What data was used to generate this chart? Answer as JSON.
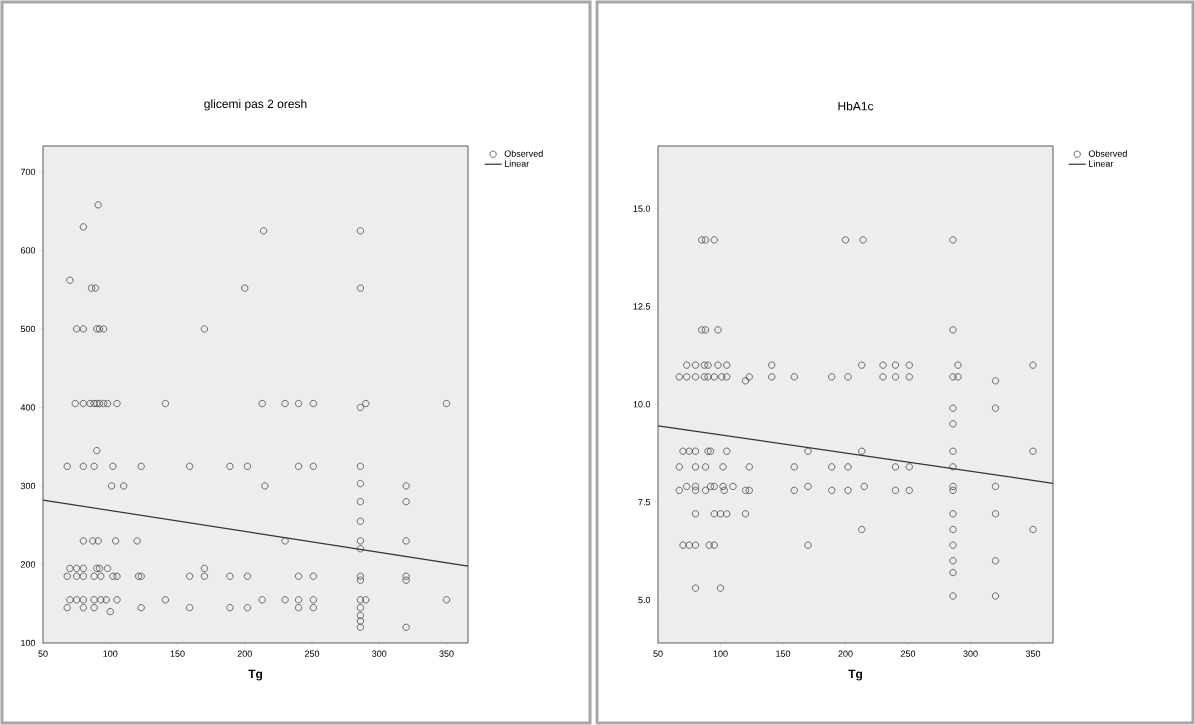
{
  "chart_data": [
    {
      "type": "scatter",
      "title": "glicemi pas 2 oresh",
      "xlabel": "Tg",
      "xlim": [
        50,
        366
      ],
      "ylim": [
        100,
        733
      ],
      "xticks": [
        50,
        100,
        150,
        200,
        250,
        300,
        350
      ],
      "yticks": [
        100,
        200,
        300,
        400,
        500,
        600,
        700
      ],
      "legend": "top right",
      "series": [
        {
          "name": "Observed",
          "marker": "circle",
          "color": "#333333",
          "x": [
            70,
            80,
            91,
            214,
            286,
            286,
            200,
            86,
            89,
            75,
            80,
            90,
            92,
            95,
            170,
            74,
            80,
            85,
            88,
            90,
            92,
            95,
            98,
            105,
            141,
            213,
            230,
            240,
            251,
            286,
            290,
            350,
            90,
            68,
            80,
            88,
            102,
            123,
            159,
            189,
            202,
            240,
            251,
            286,
            101,
            110,
            215,
            286,
            320,
            286,
            320,
            286,
            80,
            87,
            91,
            104,
            120,
            230,
            286,
            320,
            286,
            70,
            75,
            80,
            90,
            92,
            98,
            170,
            68,
            75,
            80,
            88,
            93,
            102,
            105,
            121,
            123,
            159,
            170,
            189,
            202,
            240,
            251,
            286,
            320,
            286,
            320,
            70,
            75,
            80,
            88,
            93,
            97,
            105,
            141,
            213,
            230,
            240,
            251,
            286,
            290,
            350,
            68,
            80,
            88,
            123,
            159,
            189,
            202,
            240,
            251,
            286,
            100,
            286,
            286,
            286,
            320
          ],
          "values": [
            562,
            630,
            658,
            625,
            625,
            552,
            552,
            552,
            552,
            500,
            500,
            500,
            500,
            500,
            500,
            405,
            405,
            405,
            405,
            405,
            405,
            405,
            405,
            405,
            405,
            405,
            405,
            405,
            405,
            400,
            405,
            405,
            345,
            325,
            325,
            325,
            325,
            325,
            325,
            325,
            325,
            325,
            325,
            325,
            300,
            300,
            300,
            303,
            300,
            280,
            280,
            255,
            230,
            230,
            230,
            230,
            230,
            230,
            230,
            230,
            220,
            195,
            195,
            195,
            195,
            195,
            195,
            195,
            185,
            185,
            185,
            185,
            185,
            185,
            185,
            185,
            185,
            185,
            185,
            185,
            185,
            185,
            185,
            185,
            185,
            180,
            180,
            155,
            155,
            155,
            155,
            155,
            155,
            155,
            155,
            155,
            155,
            155,
            155,
            155,
            155,
            155,
            145,
            145,
            145,
            145,
            145,
            145,
            145,
            145,
            145,
            145,
            140,
            135,
            128,
            120,
            120
          ]
        },
        {
          "name": "Linear",
          "type": "line",
          "marker": "none",
          "line_style": "solid",
          "color": "#333333",
          "x": [
            50,
            366
          ],
          "values": [
            282,
            198
          ]
        }
      ]
    },
    {
      "type": "scatter",
      "title": "HbA1c",
      "xlabel": "Tg",
      "xlim": [
        50,
        366
      ],
      "ylim": [
        3.9,
        16.6
      ],
      "xticks": [
        50,
        100,
        150,
        200,
        250,
        300,
        350
      ],
      "yticks": [
        {
          "value": 5,
          "label": "5.0"
        },
        {
          "value": 7.5,
          "label": "7.5"
        },
        {
          "value": 10,
          "label": "10.0"
        },
        {
          "value": 12.5,
          "label": "12.5"
        },
        {
          "value": 15,
          "label": "15.0"
        }
      ],
      "legend": "top right",
      "series": [
        {
          "name": "Observed",
          "marker": "circle",
          "color": "#333333",
          "x": [
            85,
            88,
            95,
            200,
            214,
            286,
            85,
            88,
            98,
            286,
            73,
            80,
            87,
            90,
            98,
            105,
            141,
            213,
            230,
            240,
            251,
            290,
            350,
            67,
            73,
            80,
            87,
            90,
            95,
            101,
            105,
            120,
            123,
            141,
            159,
            189,
            202,
            230,
            240,
            251,
            286,
            290,
            320,
            286,
            320,
            286,
            70,
            75,
            80,
            90,
            92,
            105,
            170,
            213,
            286,
            350,
            67,
            80,
            88,
            102,
            123,
            159,
            189,
            202,
            240,
            251,
            286,
            73,
            80,
            92,
            95,
            102,
            110,
            170,
            215,
            286,
            320,
            67,
            80,
            88,
            103,
            120,
            123,
            159,
            189,
            202,
            240,
            251,
            286,
            80,
            95,
            100,
            105,
            120,
            286,
            320,
            213,
            286,
            350,
            70,
            75,
            80,
            91,
            95,
            170,
            286,
            286,
            320,
            286,
            80,
            100,
            286,
            320
          ],
          "values": [
            14.2,
            14.2,
            14.2,
            14.2,
            14.2,
            14.2,
            11.9,
            11.9,
            11.9,
            11.9,
            11.0,
            11.0,
            11.0,
            11.0,
            11.0,
            11.0,
            11.0,
            11.0,
            11.0,
            11.0,
            11.0,
            11.0,
            11.0,
            10.7,
            10.7,
            10.7,
            10.7,
            10.7,
            10.7,
            10.7,
            10.7,
            10.6,
            10.7,
            10.7,
            10.7,
            10.7,
            10.7,
            10.7,
            10.7,
            10.7,
            10.7,
            10.7,
            10.6,
            9.9,
            9.9,
            9.5,
            8.8,
            8.8,
            8.8,
            8.8,
            8.8,
            8.8,
            8.8,
            8.8,
            8.8,
            8.8,
            8.4,
            8.4,
            8.4,
            8.4,
            8.4,
            8.4,
            8.4,
            8.4,
            8.4,
            8.4,
            8.4,
            7.9,
            7.9,
            7.9,
            7.9,
            7.9,
            7.9,
            7.9,
            7.9,
            7.9,
            7.9,
            7.8,
            7.8,
            7.8,
            7.8,
            7.8,
            7.8,
            7.8,
            7.8,
            7.8,
            7.8,
            7.8,
            7.8,
            7.2,
            7.2,
            7.2,
            7.2,
            7.2,
            7.2,
            7.2,
            6.8,
            6.8,
            6.8,
            6.4,
            6.4,
            6.4,
            6.4,
            6.4,
            6.4,
            6.4,
            6.0,
            6.0,
            5.7,
            5.3,
            5.3,
            5.1,
            5.1
          ]
        },
        {
          "name": "Linear",
          "type": "line",
          "marker": "none",
          "line_style": "solid",
          "color": "#333333",
          "x": [
            50,
            366
          ],
          "values": [
            9.45,
            7.98
          ]
        }
      ]
    }
  ]
}
